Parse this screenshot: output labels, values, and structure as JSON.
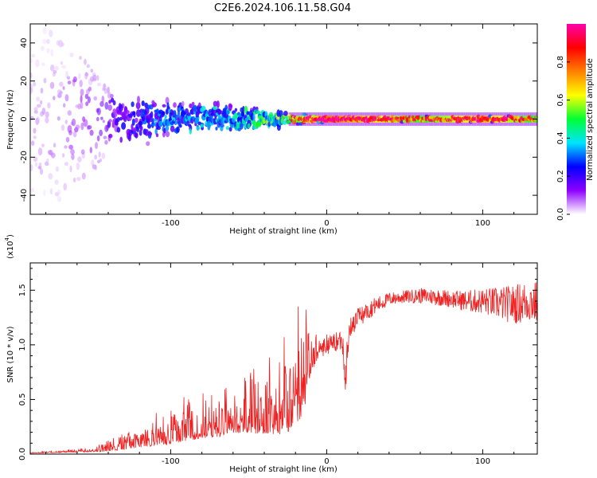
{
  "title": "C2E6.2024.106.11.58.G04",
  "chart_data": [
    {
      "type": "heatmap",
      "xlabel": "Height of straight line (km)",
      "ylabel": "Frequency (Hz)",
      "xlim": [
        -190,
        135
      ],
      "ylim": [
        -50,
        50
      ],
      "x_ticks": [
        -100,
        0,
        100
      ],
      "y_ticks": [
        -40,
        -20,
        0,
        20,
        40
      ],
      "grid": false,
      "colorbar": {
        "label": "Normalized spectral amplitude",
        "range": [
          0,
          1
        ],
        "ticks": [
          0.0,
          0.2,
          0.4,
          0.6,
          0.8
        ],
        "colormap": [
          "#ffffff",
          "#8f00ff",
          "#0000ff",
          "#00e5ff",
          "#00ff33",
          "#ffff00",
          "#ff7f00",
          "#ff0000",
          "#ff00aa"
        ]
      },
      "description_points": [
        {
          "x": -180,
          "freq_spread": 48,
          "amplitude": 0.05
        },
        {
          "x": -140,
          "freq_spread": 20,
          "amplitude": 0.15
        },
        {
          "x": -100,
          "freq_spread": 12,
          "amplitude": 0.3
        },
        {
          "x": -60,
          "freq_spread": 10,
          "amplitude": 0.35
        },
        {
          "x": -30,
          "freq_spread": 5,
          "amplitude": 0.5
        },
        {
          "x": 0,
          "freq_spread": 2,
          "amplitude": 0.9
        },
        {
          "x": 60,
          "freq_spread": 2,
          "amplitude": 0.6
        },
        {
          "x": 100,
          "freq_spread": 2,
          "amplitude": 0.8
        },
        {
          "x": 130,
          "freq_spread": 2,
          "amplitude": 0.6
        }
      ]
    },
    {
      "type": "line",
      "xlabel": "Height of straight line (km)",
      "ylabel": "SNR (10 * v/v)",
      "y_multiplier": "(x10^4)",
      "y_multiplier_base": "(x10",
      "y_multiplier_exp": "4",
      "y_multiplier_close": ")",
      "xlim": [
        -190,
        135
      ],
      "ylim": [
        0,
        1.75
      ],
      "x_ticks": [
        -100,
        0,
        100
      ],
      "y_ticks": [
        0.0,
        0.5,
        1.0,
        1.5
      ],
      "y_tick_labels": [
        "0.0",
        "0.5",
        "1.0",
        "1.5"
      ],
      "grid": false,
      "color": "#ee2222",
      "series": [
        {
          "x": [
            -190,
            -170,
            -150,
            -140,
            -130,
            -120,
            -110,
            -100,
            -90,
            -80,
            -70,
            -60,
            -50,
            -40,
            -30,
            -25,
            -20,
            -15,
            -12,
            -10,
            -5,
            0,
            5,
            10,
            12,
            15,
            20,
            30,
            40,
            50,
            60,
            70,
            80,
            90,
            100,
            110,
            120,
            130,
            135
          ],
          "y": [
            0.01,
            0.02,
            0.03,
            0.05,
            0.08,
            0.12,
            0.15,
            0.19,
            0.22,
            0.25,
            0.28,
            0.31,
            0.34,
            0.36,
            0.4,
            0.45,
            0.55,
            0.65,
            0.8,
            0.88,
            0.95,
            1.0,
            1.02,
            1.05,
            0.75,
            1.15,
            1.25,
            1.35,
            1.42,
            1.44,
            1.45,
            1.44,
            1.42,
            1.4,
            1.4,
            1.38,
            1.37,
            1.4,
            1.38
          ],
          "spread": [
            0.005,
            0.01,
            0.02,
            0.05,
            0.08,
            0.12,
            0.15,
            0.2,
            0.2,
            0.22,
            0.25,
            0.25,
            0.3,
            0.35,
            0.45,
            0.5,
            0.55,
            0.6,
            0.5,
            0.3,
            0.1,
            0.1,
            0.1,
            0.1,
            0.2,
            0.1,
            0.1,
            0.08,
            0.06,
            0.06,
            0.07,
            0.08,
            0.08,
            0.1,
            0.12,
            0.15,
            0.18,
            0.2,
            0.2
          ]
        }
      ]
    }
  ]
}
